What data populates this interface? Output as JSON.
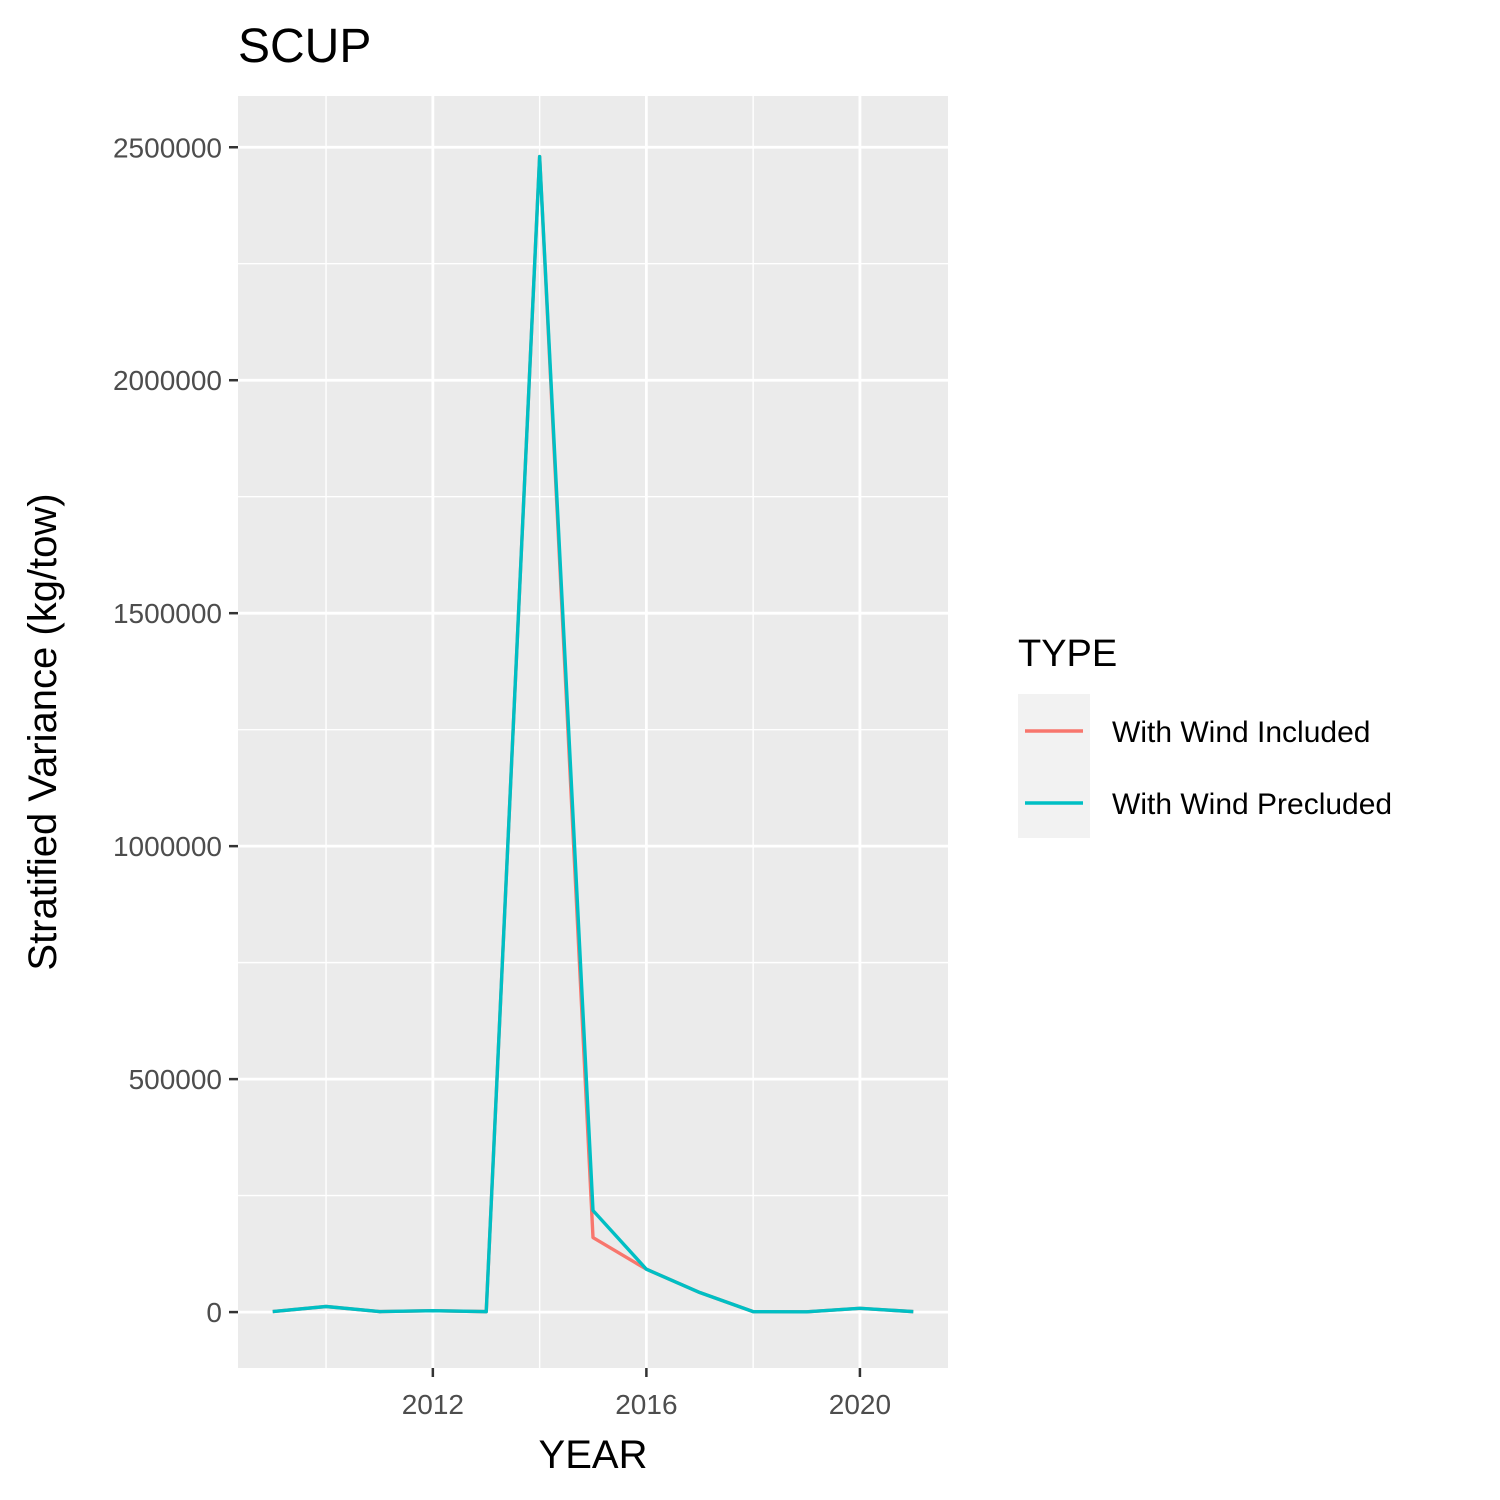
{
  "chart_data": {
    "type": "line",
    "title": "SCUP",
    "xlabel": "YEAR",
    "ylabel": "Stratified Variance (kg/tow)",
    "xlim": [
      2008.35,
      2021.65
    ],
    "ylim": [
      -120000,
      2610000
    ],
    "x_ticks": [
      2012,
      2016,
      2020
    ],
    "x_tick_labels": [
      "2012",
      "2016",
      "2020"
    ],
    "x_minor_ticks": [
      2010,
      2014,
      2018
    ],
    "y_ticks": [
      0,
      500000,
      1000000,
      1500000,
      2000000,
      2500000
    ],
    "y_tick_labels": [
      "0",
      "500000",
      "1000000",
      "1500000",
      "2000000",
      "2500000"
    ],
    "y_minor_ticks": [
      250000,
      750000,
      1250000,
      1750000,
      2250000
    ],
    "grid": true,
    "legend": {
      "title": "TYPE",
      "placement": "right"
    },
    "x": [
      2009,
      2010,
      2011,
      2012,
      2013,
      2014,
      2015,
      2016,
      2017,
      2018,
      2019,
      2020,
      2021
    ],
    "series": [
      {
        "name": "With Wind Included",
        "color": "#F8766D",
        "values": [
          1000,
          12000,
          1000,
          3000,
          1000,
          2480000,
          160000,
          92000,
          42000,
          1000,
          500,
          8000,
          1000
        ]
      },
      {
        "name": "With Wind Precluded",
        "color": "#00BFC4",
        "values": [
          1000,
          12000,
          1000,
          3000,
          1000,
          2480000,
          218000,
          92000,
          42000,
          1000,
          500,
          8000,
          1000
        ]
      }
    ]
  }
}
